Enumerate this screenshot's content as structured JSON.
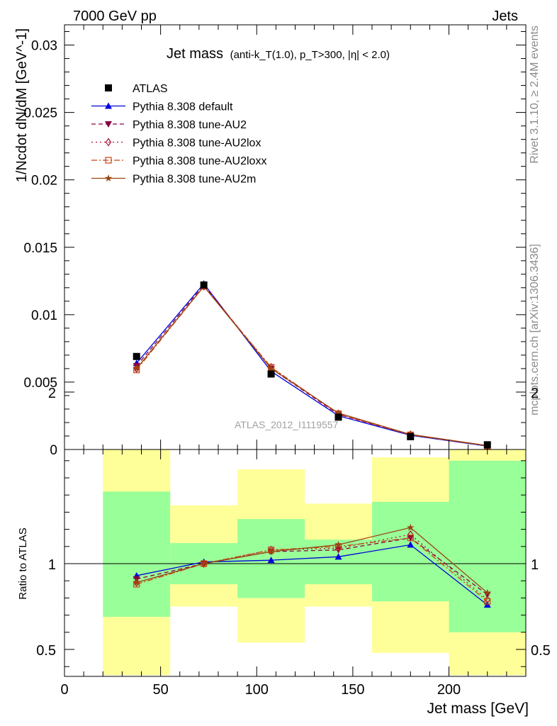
{
  "header": {
    "left": "7000 GeV pp",
    "right": "Jets"
  },
  "side_text": {
    "top": "Rivet 3.1.10, ≥ 2.4M events",
    "bottom": "mcplots.cern.ch [arXiv:1306.3436]"
  },
  "watermark": "ATLAS_2012_I1119557",
  "colors": {
    "data": "#000000",
    "default": "#0000dd",
    "au2": "#880044",
    "au2lox": "#aa1133",
    "au2loxx": "#cc4411",
    "au2m": "#994411",
    "band_green": "#99ff99",
    "band_yellow": "#ffff99"
  },
  "chart_data": [
    {
      "type": "line",
      "title_main": "Jet mass",
      "title_detail": "(anti-k_T(1.0), p_T>300, |η| < 2.0)",
      "ylabel": "1/Ncdot dN/dM [GeV^-1]",
      "xlim": [
        0,
        240
      ],
      "ylim": [
        0,
        0.0315
      ],
      "ytick_labels": [
        "0",
        "0.005",
        "0.01",
        "0.015",
        "0.02",
        "0.025",
        "0.03"
      ],
      "x": [
        37.5,
        72.5,
        107.5,
        142.5,
        180,
        220
      ],
      "series": [
        {
          "name": "ATLAS",
          "values": [
            0.0069,
            0.0122,
            0.0056,
            0.0024,
            0.00095,
            0.00035
          ]
        },
        {
          "name": "Pythia 8.308 default",
          "values": [
            0.0064,
            0.0123,
            0.0058,
            0.0025,
            0.00105,
            0.00025
          ]
        },
        {
          "name": "Pythia 8.308 tune-AU2",
          "values": [
            0.0062,
            0.0122,
            0.006,
            0.0026,
            0.0011,
            0.00028
          ]
        },
        {
          "name": "Pythia 8.308 tune-AU2lox",
          "values": [
            0.006,
            0.0121,
            0.0061,
            0.00265,
            0.0011,
            0.00027
          ]
        },
        {
          "name": "Pythia 8.308 tune-AU2loxx",
          "values": [
            0.0059,
            0.0121,
            0.0061,
            0.00265,
            0.00108,
            0.00027
          ]
        },
        {
          "name": "Pythia 8.308 tune-AU2m",
          "values": [
            0.006,
            0.0121,
            0.006,
            0.0027,
            0.00112,
            0.00029
          ]
        }
      ],
      "legend_position": "top-left"
    },
    {
      "type": "line",
      "ylabel": "Ratio to ATLAS",
      "xlabel": "Jet mass [GeV]",
      "xlim": [
        0,
        240
      ],
      "ylim": [
        0.35,
        2.25
      ],
      "ytick_labels": [
        "0.5",
        "1",
        "2"
      ],
      "xtick_labels": [
        "0",
        "50",
        "100",
        "150",
        "200"
      ],
      "x": [
        37.5,
        72.5,
        107.5,
        142.5,
        180,
        220
      ],
      "bins": [
        [
          20,
          55
        ],
        [
          55,
          90
        ],
        [
          90,
          125
        ],
        [
          125,
          160
        ],
        [
          160,
          200
        ],
        [
          200,
          240
        ]
      ],
      "band_green": [
        [
          0.69,
          1.42
        ],
        [
          0.88,
          1.12
        ],
        [
          0.8,
          1.26
        ],
        [
          0.88,
          1.14
        ],
        [
          0.78,
          1.36
        ],
        [
          0.6,
          1.6
        ]
      ],
      "band_yellow": [
        [
          0.35,
          1.75
        ],
        [
          0.75,
          1.34
        ],
        [
          0.54,
          1.55
        ],
        [
          0.75,
          1.35
        ],
        [
          0.48,
          1.62
        ],
        [
          0.35,
          2.0
        ]
      ],
      "series": [
        {
          "name": "Pythia 8.308 default",
          "values": [
            0.93,
            1.01,
            1.02,
            1.04,
            1.11,
            0.76
          ]
        },
        {
          "name": "Pythia 8.308 tune-AU2",
          "values": [
            0.91,
            1.0,
            1.07,
            1.08,
            1.15,
            0.82
          ]
        },
        {
          "name": "Pythia 8.308 tune-AU2lox",
          "values": [
            0.89,
            1.0,
            1.08,
            1.09,
            1.17,
            0.79
          ]
        },
        {
          "name": "Pythia 8.308 tune-AU2loxx",
          "values": [
            0.88,
            1.0,
            1.08,
            1.1,
            1.15,
            0.78
          ]
        },
        {
          "name": "Pythia 8.308 tune-AU2m",
          "values": [
            0.89,
            1.0,
            1.07,
            1.11,
            1.21,
            0.83
          ]
        }
      ]
    }
  ]
}
